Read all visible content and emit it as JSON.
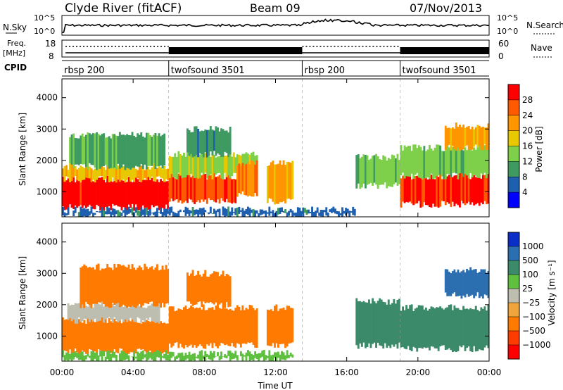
{
  "header": {
    "station": "Clyde River (fitACF)",
    "beam": "Beam 09",
    "date": "07/Nov/2013"
  },
  "noise_panel": {
    "left_label": "N.Sky",
    "right_label": "N.Search",
    "left_ticks": [
      "10^5",
      "10^0"
    ],
    "right_ticks": [
      "10^5",
      "10^0"
    ]
  },
  "freq_panel": {
    "left_label_1": "Freq.",
    "left_label_2": "[MHz]",
    "right_label": "Nave",
    "left_ticks": [
      "18",
      "8"
    ],
    "right_ticks": [
      "60",
      "0"
    ]
  },
  "cpid_panel": {
    "label": "CPID",
    "segments": [
      {
        "label": "rbsp 200",
        "start": 0,
        "end": 6
      },
      {
        "label": "twofsound 3501",
        "start": 6,
        "end": 13.5
      },
      {
        "label": "rbsp 200",
        "start": 13.5,
        "end": 19
      },
      {
        "label": "twofsound 3501",
        "start": 19,
        "end": 24
      }
    ]
  },
  "power_colorbar": {
    "label": "Power [dB]",
    "ticks": [
      "28",
      "24",
      "20",
      "16",
      "12",
      "8",
      "4"
    ],
    "colors": [
      "#ff0000",
      "#ff5a00",
      "#ff9600",
      "#e8c800",
      "#7ed04b",
      "#3e9a60",
      "#1f5fb0",
      "#0000ff"
    ]
  },
  "velocity_colorbar": {
    "label": "Velocity [m s⁻¹]",
    "ticks": [
      "1000",
      "500",
      "100",
      "25",
      "−25",
      "−100",
      "−500",
      "−1000"
    ],
    "colors": [
      "#0a2fc8",
      "#2c6fb0",
      "#3b8a6a",
      "#5fc040",
      "#bdbdb0",
      "#f0a53c",
      "#ff7a00",
      "#ff3c00",
      "#ff0000"
    ]
  },
  "chart_data": [
    {
      "type": "heatmap",
      "name": "power",
      "ylabel": "Slant Range [km]",
      "yticks": [
        1000,
        2000,
        3000,
        4000
      ],
      "ylim": [
        200,
        4600
      ],
      "xlim": [
        0,
        24
      ],
      "colorbar_label": "Power [dB]",
      "colorbar_range": [
        0,
        30
      ],
      "bands": [
        {
          "t0": 0.0,
          "t1": 6.0,
          "r0": 500,
          "r1": 1400,
          "value": 28
        },
        {
          "t0": 0.0,
          "t1": 6.0,
          "r0": 1400,
          "r1": 1800,
          "value": 18
        },
        {
          "t0": 0.4,
          "t1": 5.8,
          "r0": 1800,
          "r1": 2800,
          "value": 10
        },
        {
          "t0": 6.0,
          "t1": 9.8,
          "r0": 700,
          "r1": 1500,
          "value": 26
        },
        {
          "t0": 6.0,
          "t1": 11.0,
          "r0": 1500,
          "r1": 2200,
          "value": 14
        },
        {
          "t0": 7.0,
          "t1": 9.5,
          "r0": 2200,
          "r1": 3000,
          "value": 9
        },
        {
          "t0": 9.8,
          "t1": 11.0,
          "r0": 900,
          "r1": 1900,
          "value": 22
        },
        {
          "t0": 11.5,
          "t1": 13.0,
          "r0": 700,
          "r1": 1900,
          "value": 20
        },
        {
          "t0": 0.0,
          "t1": 16.5,
          "r0": 250,
          "r1": 420,
          "value": 6
        },
        {
          "t0": 16.5,
          "t1": 19.0,
          "r0": 1200,
          "r1": 2100,
          "value": 12
        },
        {
          "t0": 19.0,
          "t1": 24.0,
          "r0": 600,
          "r1": 1500,
          "value": 27
        },
        {
          "t0": 19.0,
          "t1": 24.0,
          "r0": 1500,
          "r1": 2400,
          "value": 13
        },
        {
          "t0": 21.5,
          "t1": 24.0,
          "r0": 2400,
          "r1": 3100,
          "value": 20
        }
      ]
    },
    {
      "type": "heatmap",
      "name": "velocity",
      "ylabel": "Slant Range [km]",
      "yticks": [
        1000,
        2000,
        3000,
        4000
      ],
      "ylim": [
        200,
        4600
      ],
      "xlim": [
        0,
        24
      ],
      "xlabel": "Time UT",
      "xticks": [
        "00:00",
        "04:00",
        "08:00",
        "12:00",
        "16:00",
        "20:00",
        "00:00"
      ],
      "colorbar_label": "Velocity [m s⁻¹]",
      "bands": [
        {
          "t0": 0.0,
          "t1": 6.0,
          "r0": 500,
          "r1": 1500,
          "value": -250
        },
        {
          "t0": 0.3,
          "t1": 5.5,
          "r0": 1500,
          "r1": 2000,
          "value": -10
        },
        {
          "t0": 1.0,
          "t1": 6.0,
          "r0": 2000,
          "r1": 3200,
          "value": -200
        },
        {
          "t0": 6.0,
          "t1": 11.0,
          "r0": 700,
          "r1": 1900,
          "value": -350
        },
        {
          "t0": 7.0,
          "t1": 9.5,
          "r0": 2000,
          "r1": 3000,
          "value": -150
        },
        {
          "t0": 11.5,
          "t1": 13.0,
          "r0": 700,
          "r1": 1900,
          "value": -400
        },
        {
          "t0": 16.5,
          "t1": 19.0,
          "r0": 700,
          "r1": 2100,
          "value": 150
        },
        {
          "t0": 19.0,
          "t1": 24.0,
          "r0": 600,
          "r1": 1900,
          "value": 150
        },
        {
          "t0": 21.5,
          "t1": 24.0,
          "r0": 2300,
          "r1": 3100,
          "value": 600
        },
        {
          "t0": 0.0,
          "t1": 13.0,
          "r0": 250,
          "r1": 450,
          "value": 60
        }
      ]
    }
  ]
}
